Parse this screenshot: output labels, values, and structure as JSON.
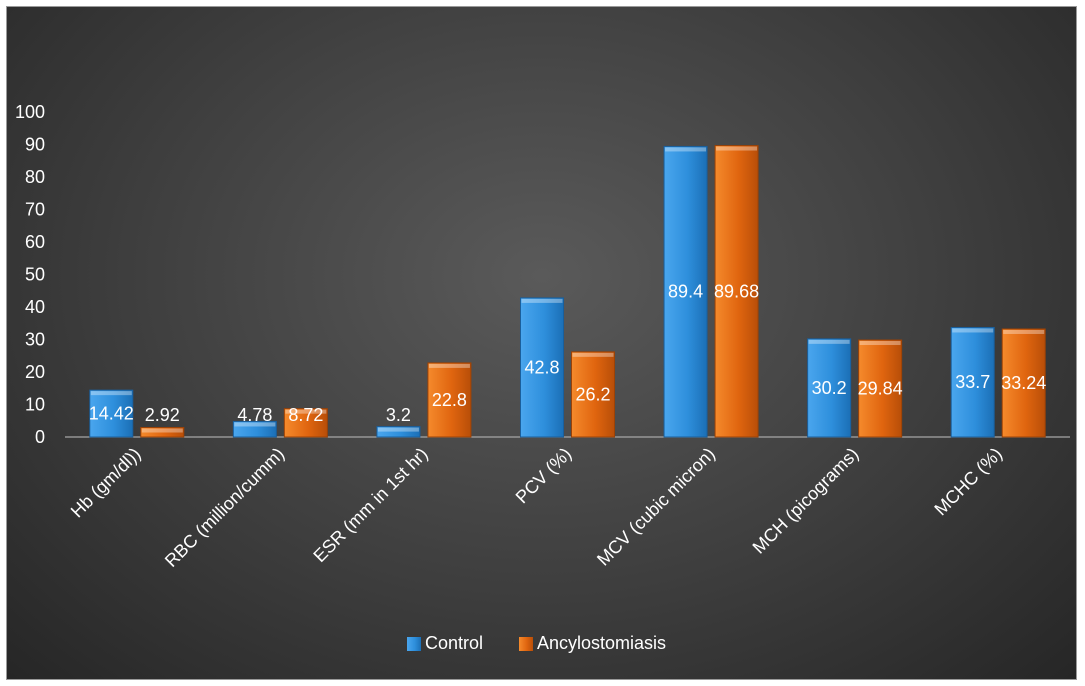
{
  "chart_data": {
    "type": "bar",
    "categories": [
      "Hb (gm/dl))",
      "RBC (million/cumm)",
      "ESR (mm in 1st hr)",
      "PCV (%)",
      "MCV (cubic micron)",
      "MCH (picograms)",
      "MCHC (%)"
    ],
    "series": [
      {
        "name": "Control",
        "values": [
          14.42,
          4.78,
          3.2,
          42.8,
          89.4,
          30.2,
          33.7
        ],
        "color": "#2e8fdc"
      },
      {
        "name": "Ancylostomiasis",
        "values": [
          2.92,
          8.72,
          22.8,
          26.2,
          89.68,
          29.84,
          33.24
        ],
        "color": "#e0650f"
      }
    ],
    "yticks": [
      "0",
      "10",
      "20",
      "30",
      "40",
      "50",
      "60",
      "70",
      "80",
      "90",
      "100"
    ],
    "ylim": [
      0,
      100
    ],
    "title": "",
    "xlabel": "",
    "ylabel": "",
    "grid": false,
    "legend_position": "bottom"
  }
}
